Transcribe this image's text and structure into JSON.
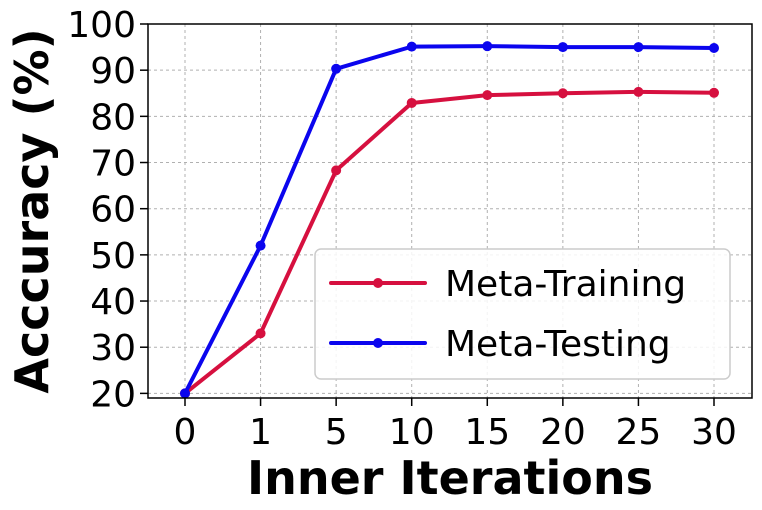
{
  "chart_data": {
    "type": "line",
    "categories": [
      "0",
      "1",
      "5",
      "10",
      "15",
      "20",
      "25",
      "30"
    ],
    "series": [
      {
        "name": "Meta-Training",
        "color": "#d6103f",
        "values": [
          20.0,
          33.0,
          68.3,
          82.9,
          84.6,
          85.0,
          85.3,
          85.1
        ]
      },
      {
        "name": "Meta-Testing",
        "color": "#0b05ee",
        "values": [
          20.0,
          52.0,
          90.3,
          95.1,
          95.2,
          95.0,
          95.0,
          94.8
        ]
      }
    ],
    "xlabel": "Inner Iterations",
    "ylabel": "Acccuracy (%)",
    "ylim": [
      19,
      100
    ],
    "yticks": [
      20,
      30,
      40,
      50,
      60,
      70,
      80,
      90,
      100
    ],
    "grid": true,
    "legend": "lower-right"
  }
}
